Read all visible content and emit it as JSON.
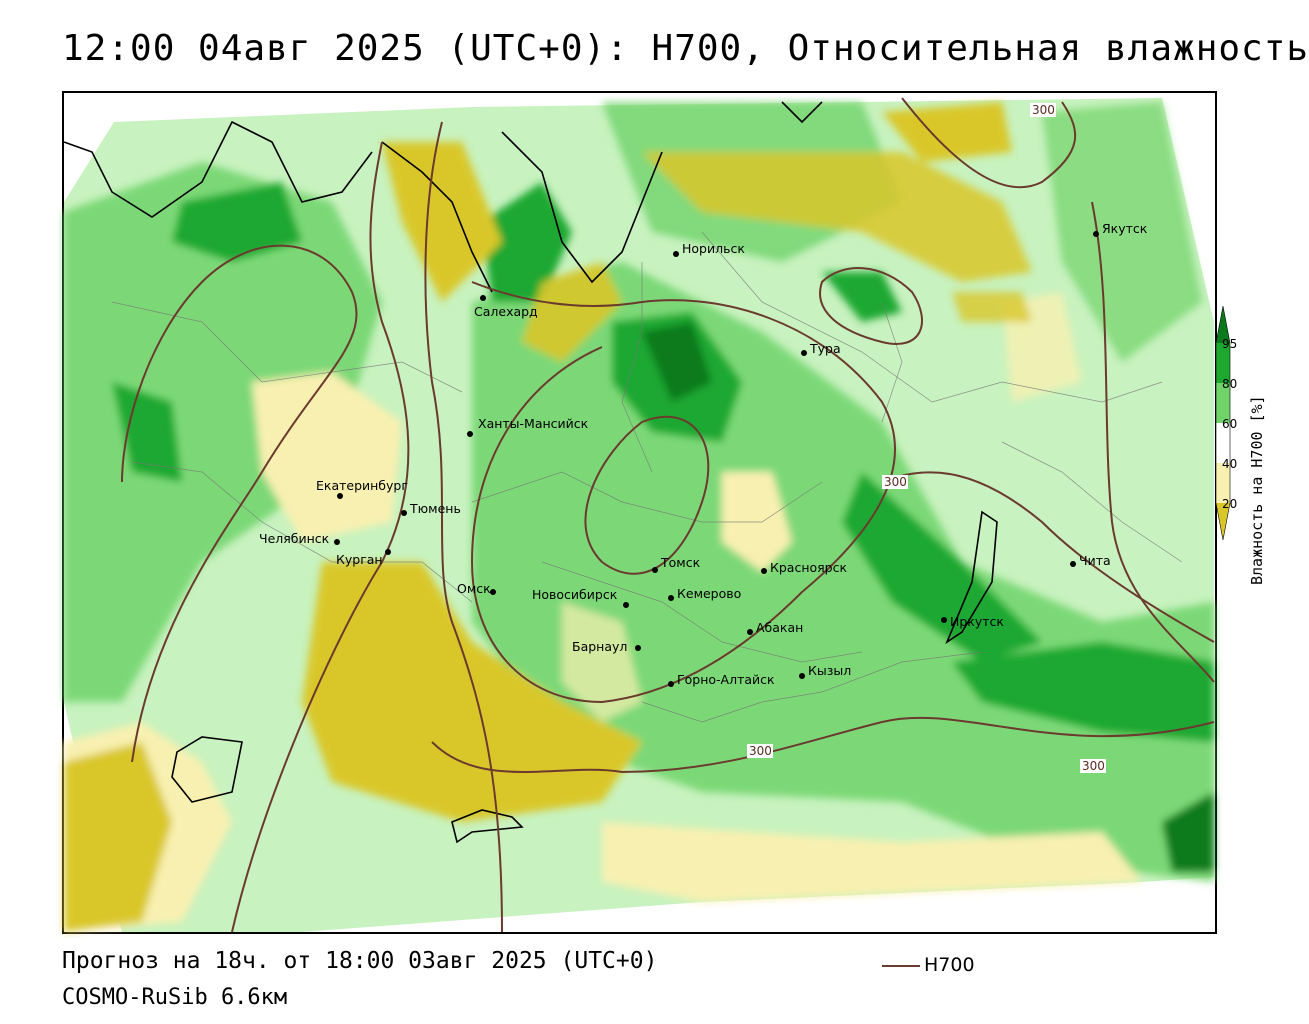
{
  "title": "12:00 04авг 2025 (UTC+0): H700, Относительная влажность",
  "footer": {
    "forecast": "Прогноз на 18ч. от 18:00 03авг 2025 (UTC+0)",
    "model": "COSMO-RuSib 6.6км"
  },
  "contour_legend": {
    "label": "H700",
    "color": "#6b3a2e"
  },
  "colorbar": {
    "title": "Влажность на H700 [%]",
    "ticks": [
      "95",
      "80",
      "60",
      "40",
      "20"
    ],
    "colors": {
      "c95": "#0b7a1f",
      "c80": "#1ea830",
      "c60": "#6fd36a",
      "c40": "#c8f2bf",
      "c20": "#f8f0b0",
      "c0": "#d9c72a"
    }
  },
  "contour_labels": [
    "300",
    "300",
    "300",
    "300"
  ],
  "cities": [
    {
      "name": "Якутск"
    },
    {
      "name": "Норильск"
    },
    {
      "name": "Салехард"
    },
    {
      "name": "Тура"
    },
    {
      "name": "Ханты-Мансийск"
    },
    {
      "name": "Екатеринбург"
    },
    {
      "name": "Тюмень"
    },
    {
      "name": "Челябинск"
    },
    {
      "name": "Курган"
    },
    {
      "name": "Омск"
    },
    {
      "name": "Новосибирск"
    },
    {
      "name": "Томск"
    },
    {
      "name": "Кемерово"
    },
    {
      "name": "Красноярск"
    },
    {
      "name": "Барнаул"
    },
    {
      "name": "Абакан"
    },
    {
      "name": "Горно-Алтайск"
    },
    {
      "name": "Кызыл"
    },
    {
      "name": "Иркутск"
    },
    {
      "name": "Чита"
    }
  ]
}
